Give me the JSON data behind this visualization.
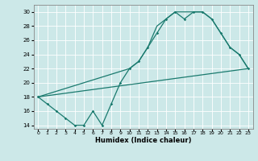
{
  "xlabel": "Humidex (Indice chaleur)",
  "bg_color": "#cce8e8",
  "grid_color": "#ffffff",
  "line_color": "#1a7a6e",
  "xlim": [
    -0.5,
    23.5
  ],
  "ylim": [
    13.5,
    31
  ],
  "yticks": [
    14,
    16,
    18,
    20,
    22,
    24,
    26,
    28,
    30
  ],
  "line1_x": [
    0,
    1,
    2,
    3,
    4,
    5,
    6,
    7,
    8,
    9,
    10,
    11,
    12,
    13,
    14,
    15,
    16,
    17,
    18,
    19,
    20,
    21,
    22,
    23
  ],
  "line1_y": [
    18,
    17,
    16,
    15,
    14,
    14,
    16,
    14,
    17,
    20,
    22,
    23,
    25,
    27,
    29,
    30,
    29,
    30,
    30,
    29,
    27,
    25,
    24,
    22
  ],
  "line2_x": [
    0,
    10,
    11,
    12,
    13,
    14,
    15,
    16,
    17,
    18,
    19,
    20,
    21,
    22,
    23
  ],
  "line2_y": [
    18,
    22,
    23,
    25,
    28,
    29,
    30,
    30,
    30,
    30,
    29,
    27,
    25,
    24,
    22
  ],
  "line3_x": [
    0,
    23
  ],
  "line3_y": [
    18,
    22
  ]
}
